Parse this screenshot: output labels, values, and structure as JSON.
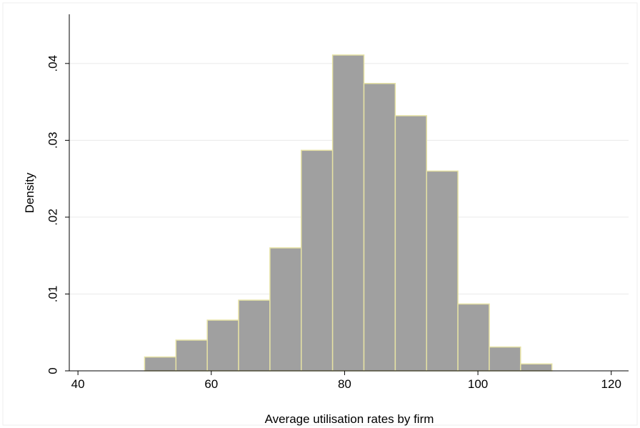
{
  "chart_data": {
    "type": "histogram",
    "xlabel": "Average utilisation rates by firm",
    "ylabel": "Density",
    "bins": [
      50,
      54.7,
      59.4,
      64.1,
      68.8,
      73.5,
      78.2,
      82.9,
      87.6,
      92.3,
      97,
      101.7,
      106.4,
      111.1
    ],
    "values": [
      0.0018,
      0.004,
      0.0066,
      0.0092,
      0.016,
      0.0287,
      0.0411,
      0.0374,
      0.0332,
      0.026,
      0.0087,
      0.0031,
      0.0009
    ],
    "color": "#a0a0a0",
    "edgecolor": "#e6e2a4",
    "xlim": [
      38.7,
      122.6
    ],
    "ylim": [
      0,
      0.0464
    ],
    "xticks": [
      40,
      60,
      80,
      100,
      120
    ],
    "yticks": [
      0,
      {
        "value": 0.01,
        "label": ".01"
      },
      {
        "value": 0.02,
        "label": ".02"
      },
      {
        "value": 0.03,
        "label": ".03"
      },
      {
        "value": 0.04,
        "label": ".04"
      }
    ],
    "grid": true
  }
}
